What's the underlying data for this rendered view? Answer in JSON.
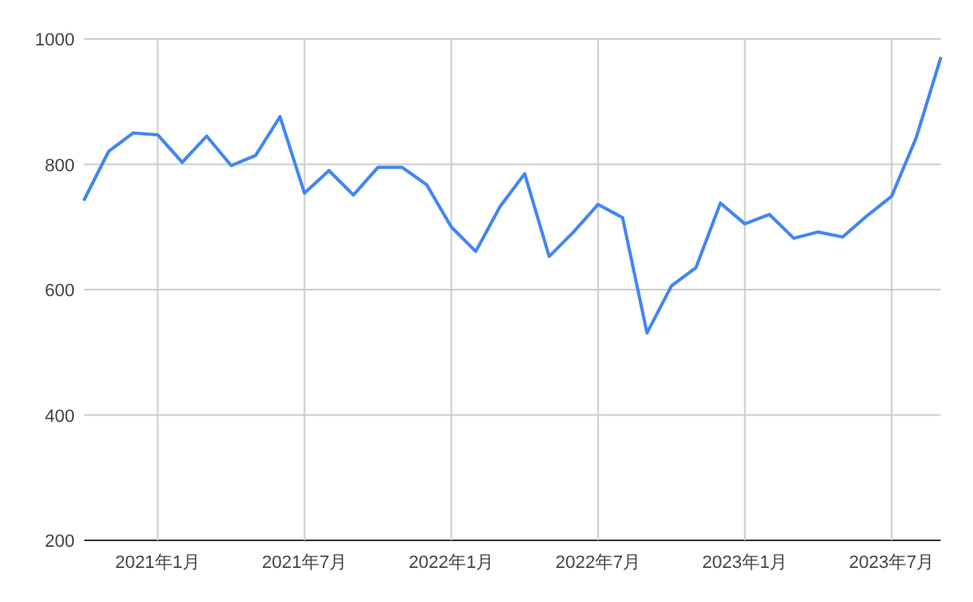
{
  "chart_data": {
    "type": "line",
    "x": [
      "2020-10",
      "2020-11",
      "2020-12",
      "2021-01",
      "2021-02",
      "2021-03",
      "2021-04",
      "2021-05",
      "2021-06",
      "2021-07",
      "2021-08",
      "2021-09",
      "2021-10",
      "2021-11",
      "2021-12",
      "2022-01",
      "2022-02",
      "2022-03",
      "2022-04",
      "2022-05",
      "2022-06",
      "2022-07",
      "2022-08",
      "2022-09",
      "2022-10",
      "2022-11",
      "2022-12",
      "2023-01",
      "2023-02",
      "2023-03",
      "2023-04",
      "2023-05",
      "2023-06",
      "2023-07",
      "2023-08",
      "2023-09"
    ],
    "series": [
      {
        "color": "#4285f4",
        "values": [
          744,
          821,
          850,
          847,
          803,
          845,
          798,
          814,
          876,
          754,
          790,
          751,
          795,
          795,
          767,
          700,
          661,
          733,
          785,
          653,
          692,
          736,
          715,
          531,
          606,
          635,
          738,
          705,
          720,
          682,
          692,
          684,
          718,
          749,
          842,
          969
        ]
      }
    ],
    "xlim": [
      "2020-10",
      "2023-09"
    ],
    "ylim": [
      200,
      1000
    ],
    "yticks": [
      200,
      400,
      600,
      800,
      1000
    ],
    "xticks": [
      {
        "value": "2021-01",
        "label": "2021年1月"
      },
      {
        "value": "2021-07",
        "label": "2021年7月"
      },
      {
        "value": "2022-01",
        "label": "2022年1月"
      },
      {
        "value": "2022-07",
        "label": "2022年7月"
      },
      {
        "value": "2023-01",
        "label": "2023年1月"
      },
      {
        "value": "2023-07",
        "label": "2023年7月"
      }
    ],
    "grid": true
  }
}
